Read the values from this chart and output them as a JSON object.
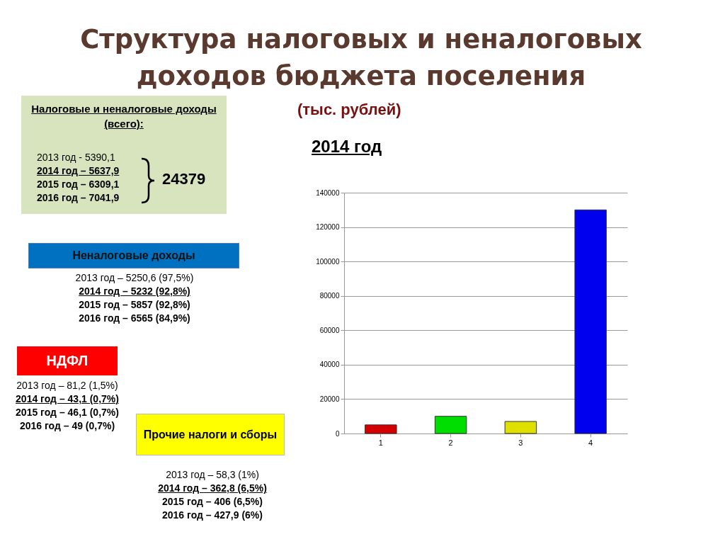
{
  "chart_data": {
    "type": "bar",
    "title": "Структура налоговых и неналоговых доходов бюджета поселения",
    "subtitle": "(тыс. рублей)",
    "annotations": [
      "2014 год",
      "Налоговые и неналоговые доходы (всего):",
      "2013 год -  5390,1",
      "2014 год – 5637,9",
      "2015 год – 6309,1",
      "2016 год – 7041,9",
      "24379",
      "Неналоговые доходы",
      "2013 год – 5250,6 (97,5%)",
      "2014 год – 5232 (92,8%)",
      "2015 год – 5857 (92,8%)",
      "2016 год – 6565 (84,9%)",
      "НДФЛ",
      "2013 год – 81,2 (1,5%)",
      "2014 год – 43,1 (0,7%)",
      "2015 год – 46,1 (0,7%)",
      "2016 год – 49 (0,7%)",
      "Прочие налоги и сборы",
      "2013 год – 58,3 (1%)",
      "2014 год – 362,8 (6,5%)",
      "2015 год – 406 (6,5%)",
      "2016 год – 427,9 (6%)"
    ],
    "categories": [
      "1",
      "2",
      "3",
      "4"
    ],
    "values": [
      5000,
      10000,
      7000,
      130000
    ],
    "colors": [
      "#d40000",
      "#00dd00",
      "#e0e000",
      "#0000ee"
    ],
    "ylim": [
      0,
      140000
    ],
    "yticks": [
      0,
      20000,
      40000,
      60000,
      80000,
      100000,
      120000,
      140000
    ],
    "grid": true
  }
}
